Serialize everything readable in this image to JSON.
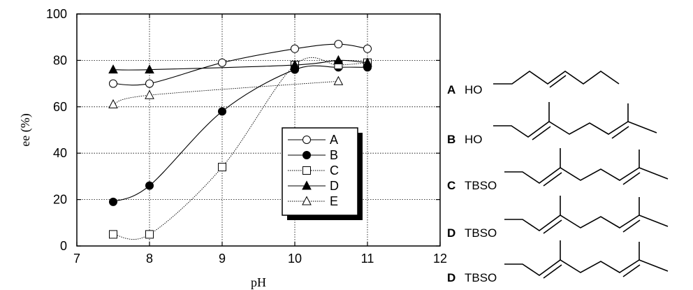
{
  "chart_data": {
    "type": "line",
    "xlabel": "pH",
    "ylabel": "ee (%)",
    "xlim": [
      7,
      12
    ],
    "ylim": [
      0,
      100
    ],
    "xticks": [
      "7",
      "8",
      "9",
      "10",
      "11",
      "12"
    ],
    "yticks": [
      "0",
      "20",
      "40",
      "60",
      "80",
      "100"
    ],
    "grid": true,
    "legend_position": "center-right",
    "series": [
      {
        "name": "A",
        "marker": "open-circle",
        "line": "solid",
        "x": [
          7.5,
          8,
          9,
          10,
          10.6,
          11
        ],
        "y": [
          70,
          70,
          79,
          85,
          87,
          85
        ]
      },
      {
        "name": "B",
        "marker": "filled-circle",
        "line": "solid",
        "x": [
          7.5,
          8,
          9,
          10,
          10.6,
          11
        ],
        "y": [
          19,
          26,
          58,
          76,
          77,
          77
        ]
      },
      {
        "name": "C",
        "marker": "open-square",
        "line": "dotted",
        "x": [
          7.5,
          8,
          9,
          10,
          10.6,
          11
        ],
        "y": [
          5,
          5,
          34,
          78,
          78,
          79
        ]
      },
      {
        "name": "D",
        "marker": "filled-triangle",
        "line": "solid",
        "x": [
          7.5,
          8,
          10,
          10.6,
          11
        ],
        "y": [
          76,
          76,
          78,
          80,
          79
        ]
      },
      {
        "name": "E",
        "marker": "open-triangle",
        "line": "dotted",
        "x": [
          7.5,
          8,
          10.6
        ],
        "y": [
          61,
          65,
          71
        ]
      }
    ]
  },
  "compounds": [
    {
      "letter": "A",
      "group": "HO"
    },
    {
      "letter": "B",
      "group": "HO"
    },
    {
      "letter": "C",
      "group": "TBSO"
    },
    {
      "letter": "D",
      "group": "TBSO"
    },
    {
      "letter": "D",
      "group": "TBSO"
    }
  ]
}
